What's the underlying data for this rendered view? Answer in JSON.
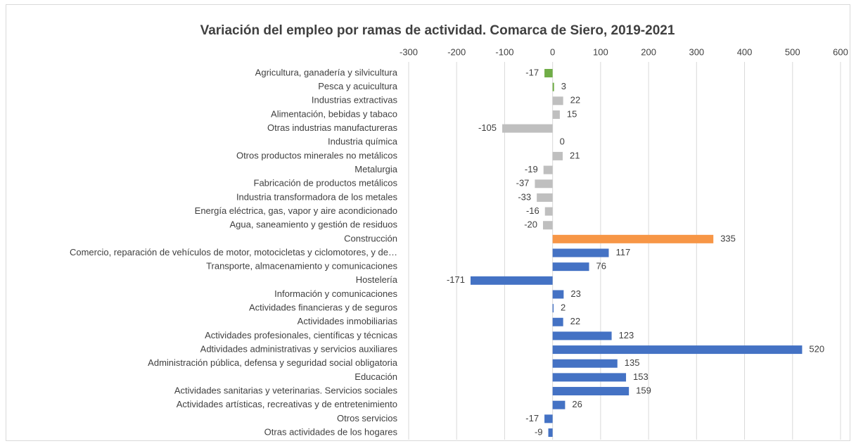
{
  "chart_data": {
    "type": "bar",
    "orientation": "horizontal",
    "title": "Variación del empleo por ramas de actividad. Comarca de Siero, 2019-2021",
    "categories": [
      "Agricultura, ganadería y silvicultura",
      "Pesca y acuicultura",
      "Industrias extractivas",
      "Alimentación, bebidas y tabaco",
      "Otras industrias manufactureras",
      "Industria química",
      "Otros productos minerales no metálicos",
      "Metalurgia",
      "Fabricación de productos metálicos",
      "Industria transformadora de los metales",
      "Energía eléctrica, gas, vapor y aire acondicionado",
      "Agua, saneamiento y gestión de residuos",
      "Construcción",
      "Comercio, reparación de vehículos de motor, motocicletas y ciclomotores, y de…",
      "Transporte, almacenamiento y comunicaciones",
      "Hostelería",
      "Información y comunicaciones",
      "Actividades financieras y de seguros",
      "Actividades inmobiliarias",
      "Actividades profesionales, científicas y técnicas",
      "Adtividades administrativas y servicios auxiliares",
      "Administración pública, defensa y seguridad social obligatoria",
      "Educación",
      "Actividades sanitarias y veterinarias. Servicios sociales",
      "Actividades artísticas, recreativas y de entretenimiento",
      "Otros servicios",
      "Otras actividades de los hogares"
    ],
    "values": [
      -17,
      3,
      22,
      15,
      -105,
      0,
      21,
      -19,
      -37,
      -33,
      -16,
      -20,
      335,
      117,
      76,
      -171,
      23,
      2,
      22,
      123,
      520,
      135,
      153,
      159,
      26,
      -17,
      -9
    ],
    "colors": [
      "#70ad47",
      "#70ad47",
      "#bfbfbf",
      "#bfbfbf",
      "#bfbfbf",
      "#bfbfbf",
      "#bfbfbf",
      "#bfbfbf",
      "#bfbfbf",
      "#bfbfbf",
      "#bfbfbf",
      "#bfbfbf",
      "#f79646",
      "#4472c4",
      "#4472c4",
      "#4472c4",
      "#4472c4",
      "#4472c4",
      "#4472c4",
      "#4472c4",
      "#4472c4",
      "#4472c4",
      "#4472c4",
      "#4472c4",
      "#4472c4",
      "#4472c4",
      "#4472c4"
    ],
    "xlim": [
      -300,
      600
    ],
    "xticks": [
      -300,
      -200,
      -100,
      0,
      100,
      200,
      300,
      400,
      500,
      600
    ],
    "grid": true
  }
}
